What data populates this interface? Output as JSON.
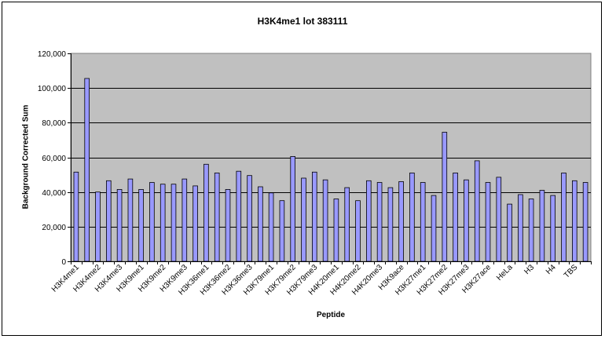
{
  "chart_data": {
    "type": "bar",
    "title": "H3K4me1 lot 383111",
    "xlabel": "Peptide",
    "ylabel": "Background Corrected Sum",
    "ylim": [
      0,
      120000
    ],
    "yticks": [
      "0",
      "20,000",
      "40,000",
      "60,000",
      "80,000",
      "100,000",
      "120,000"
    ],
    "grid": true,
    "legend": "none",
    "plot_bg": "#C0C0C0",
    "bar_color": "#9999FF",
    "categories": [
      "H3K4me1",
      "",
      "H3K4me2",
      "",
      "H3K4me3",
      "",
      "H3K9me1",
      "",
      "H3K9me2",
      "",
      "H3K9me3",
      "",
      "H3K36me1",
      "",
      "H3K36me2",
      "",
      "H3K36me3",
      "",
      "H3K79me1",
      "",
      "H3K79me2",
      "",
      "H3K79me3",
      "",
      "H4K20me1",
      "",
      "H4K20me2",
      "",
      "H4K20me3",
      "",
      "H3K9ace",
      "",
      "H3K27me1",
      "",
      "H3K27me2",
      "",
      "H3K27me3",
      "",
      "H3K27ace",
      "",
      "HeLa",
      "",
      "H3",
      "",
      "H4",
      "",
      "TBS",
      ""
    ],
    "values": [
      51500,
      105500,
      40000,
      46500,
      41500,
      47500,
      41500,
      45500,
      44500,
      44500,
      47500,
      43500,
      56000,
      51000,
      41500,
      52000,
      49500,
      43000,
      39500,
      35000,
      60500,
      48000,
      51500,
      47000,
      36000,
      42500,
      35000,
      46500,
      45500,
      42500,
      46000,
      51000,
      45500,
      38000,
      74500,
      51000,
      47000,
      58000,
      45500,
      48500,
      33000,
      38500,
      36000,
      41000,
      38000,
      51000,
      46500,
      45500
    ]
  }
}
